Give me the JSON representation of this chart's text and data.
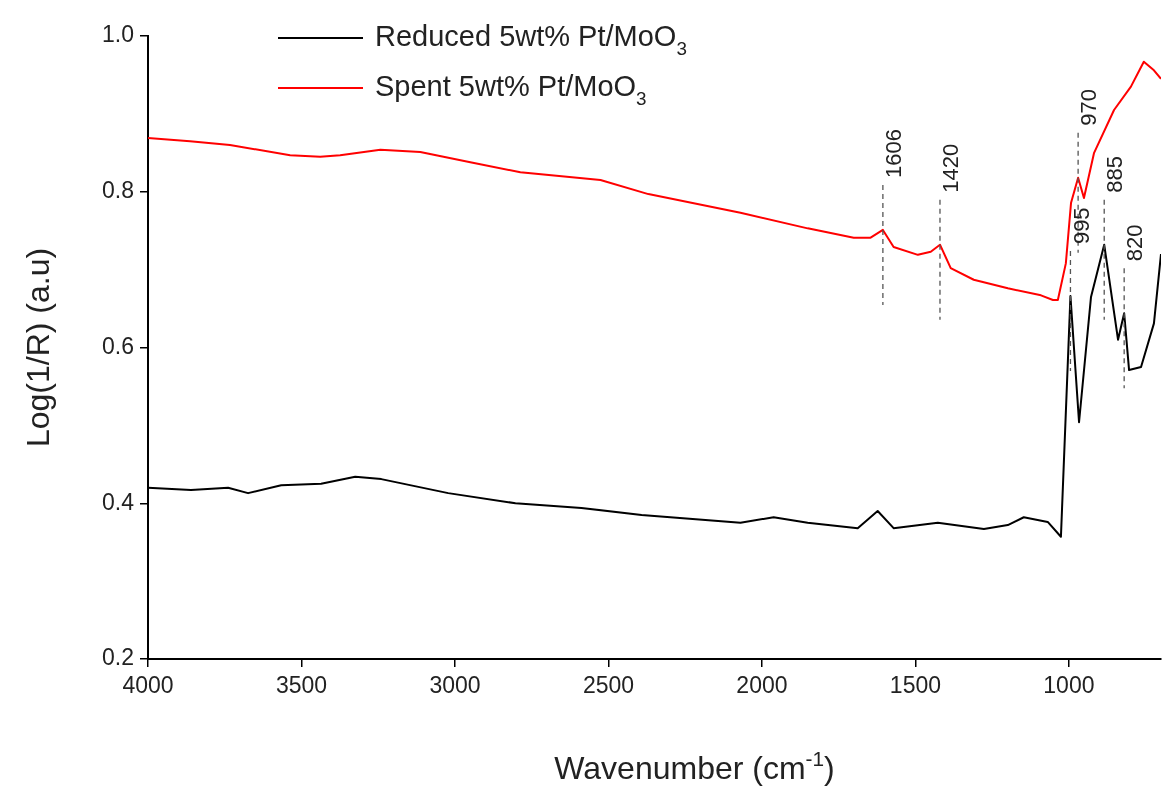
{
  "chart_data": {
    "type": "line",
    "xlabel": "Wavenumber (cm$^{-1}$)",
    "ylabel": "Log(1/R) (a.u)",
    "xlim": [
      4000,
      700
    ],
    "xticks": [
      4000,
      3500,
      3000,
      2500,
      2000,
      1500,
      1000
    ],
    "ylim": [
      0.2,
      1.0
    ],
    "yticks": [
      0.2,
      0.4,
      0.6,
      0.8,
      {
        "value": 1.0,
        "label": "1.0"
      }
    ],
    "grid": false,
    "legend": "top left",
    "marker": "none",
    "line_style": "solid",
    "series": [
      {
        "name": "Reduced 5wt% Pt/MoO$_{3}$",
        "color": "#000000",
        "x": [
          4000,
          3860,
          3739,
          3674,
          3566,
          3436,
          3325,
          3240,
          3022,
          2803,
          2588,
          2392,
          2070,
          1962,
          1851,
          1688,
          1623,
          1571,
          1427,
          1277,
          1199,
          1147,
          1069,
          1026,
          995,
          967,
          928,
          885,
          840,
          820,
          804,
          765,
          723,
          700
        ],
        "values": [
          0.42,
          0.417,
          0.42,
          0.413,
          0.423,
          0.425,
          0.434,
          0.431,
          0.413,
          0.4,
          0.394,
          0.385,
          0.375,
          0.382,
          0.375,
          0.368,
          0.39,
          0.368,
          0.375,
          0.367,
          0.372,
          0.382,
          0.376,
          0.357,
          0.666,
          0.504,
          0.665,
          0.732,
          0.61,
          0.644,
          0.571,
          0.575,
          0.631,
          0.72
        ]
      },
      {
        "name": "Spent 5wt% Pt/MoO$_{3}$",
        "color": "#ff0000",
        "x": [
          4000,
          3863,
          3733,
          3537,
          3439,
          3374,
          3243,
          3113,
          2950,
          2787,
          2526,
          2370,
          2070,
          1851,
          1701,
          1646,
          1606,
          1571,
          1492,
          1450,
          1420,
          1385,
          1310,
          1199,
          1091,
          1052,
          1036,
          1010,
          993,
          970,
          951,
          918,
          853,
          798,
          756,
          723,
          700
        ],
        "values": [
          0.869,
          0.865,
          0.86,
          0.847,
          0.845,
          0.847,
          0.854,
          0.851,
          0.838,
          0.825,
          0.815,
          0.797,
          0.773,
          0.753,
          0.741,
          0.741,
          0.751,
          0.729,
          0.719,
          0.723,
          0.732,
          0.702,
          0.687,
          0.676,
          0.667,
          0.661,
          0.661,
          0.708,
          0.786,
          0.818,
          0.792,
          0.85,
          0.905,
          0.935,
          0.967,
          0.956,
          0.945
        ]
      }
    ],
    "annotations": [
      {
        "text": "1606",
        "x": 1606,
        "y": 0.751
      },
      {
        "text": "1420",
        "x": 1420,
        "y": 0.732
      },
      {
        "text": "970",
        "x": 970,
        "y": 0.818
      },
      {
        "text": "885",
        "x": 885,
        "y": 0.732
      },
      {
        "text": "820",
        "x": 820,
        "y": 0.644
      },
      {
        "text": "995",
        "x": 995,
        "y": 0.666
      }
    ]
  }
}
